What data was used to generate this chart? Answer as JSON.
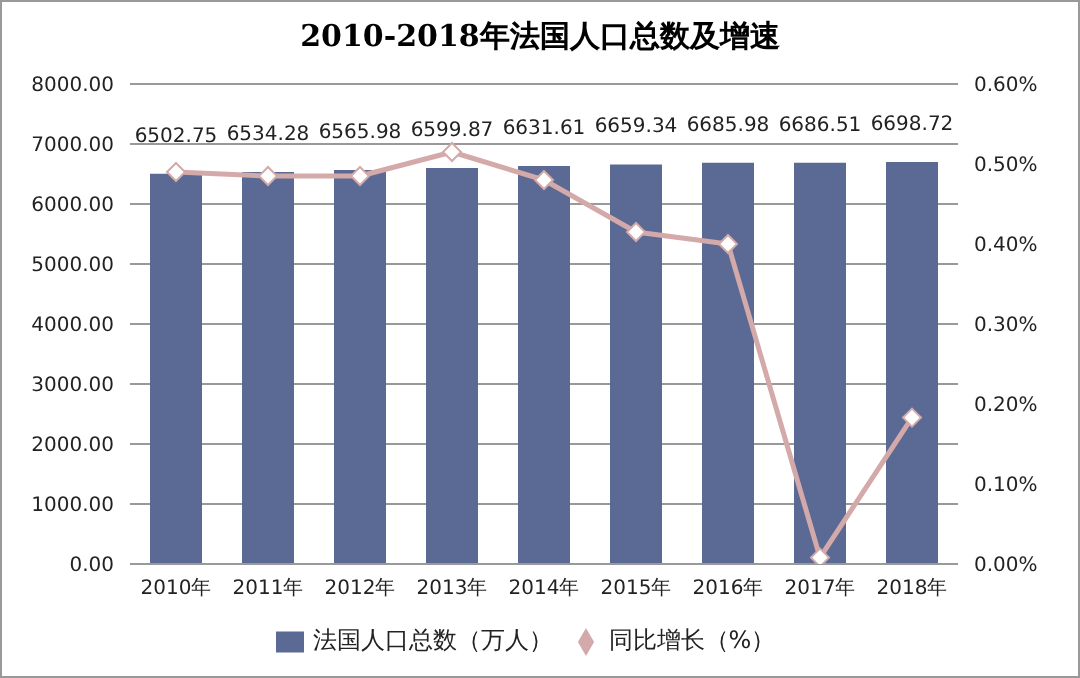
{
  "chart_data": {
    "type": "bar",
    "title": "2010-2018年法国人口总数及增速",
    "categories": [
      "2010年",
      "2011年",
      "2012年",
      "2013年",
      "2014年",
      "2015年",
      "2016年",
      "2017年",
      "2018年"
    ],
    "series": [
      {
        "name": "法国人口总数（万人）",
        "color": "#5b6a94",
        "values": [
          6502.75,
          6534.28,
          6565.98,
          6599.87,
          6631.61,
          6659.34,
          6685.98,
          6686.51,
          6698.72
        ],
        "value_labels": [
          "6502.75",
          "6534.28",
          "6565.98",
          "6599.87",
          "6631.61",
          "6659.34",
          "6685.98",
          "6686.51",
          "6698.72"
        ]
      },
      {
        "name": "同比增长（%）",
        "type": "line",
        "axis": "y2",
        "color": "#d4a9a9",
        "marker": "diamond",
        "values": [
          0.49,
          0.485,
          0.485,
          0.515,
          0.48,
          0.415,
          0.4,
          0.008,
          0.183
        ]
      }
    ],
    "ylim": [
      0,
      8000
    ],
    "yticks": [
      {
        "value": 0,
        "label": "0.00"
      },
      {
        "value": 1000,
        "label": "1000.00"
      },
      {
        "value": 2000,
        "label": "2000.00"
      },
      {
        "value": 3000,
        "label": "3000.00"
      },
      {
        "value": 4000,
        "label": "4000.00"
      },
      {
        "value": 5000,
        "label": "5000.00"
      },
      {
        "value": 6000,
        "label": "6000.00"
      },
      {
        "value": 7000,
        "label": "7000.00"
      },
      {
        "value": 8000,
        "label": "8000.00"
      }
    ],
    "y2lim": [
      0,
      0.6
    ],
    "y2ticks": [
      {
        "value": 0,
        "label": "0.00%"
      },
      {
        "value": 0.1,
        "label": "0.10%"
      },
      {
        "value": 0.2,
        "label": "0.20%"
      },
      {
        "value": 0.3,
        "label": "0.30%"
      },
      {
        "value": 0.4,
        "label": "0.40%"
      },
      {
        "value": 0.5,
        "label": "0.50%"
      },
      {
        "value": 0.6,
        "label": "0.60%"
      }
    ],
    "grid": "y",
    "legend": "bottom"
  }
}
